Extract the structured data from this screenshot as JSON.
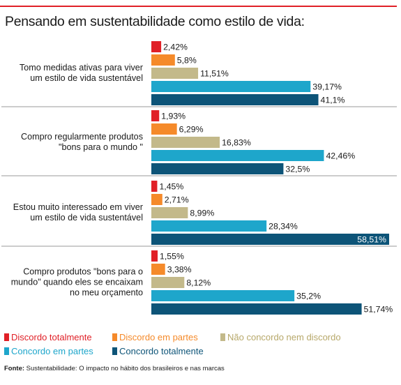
{
  "title": "Pensando em sustentabilidade como estilo de vida:",
  "chart_data": {
    "type": "bar",
    "orientation": "horizontal",
    "categories": [
      [
        "Tomo medidas ativas para viver",
        "um estilo de vida sustentável"
      ],
      [
        "Compro regularmente produtos",
        "\"bons para o mundo \""
      ],
      [
        "Estou muito interessado em viver",
        "um estilo de vida sustentável"
      ],
      [
        "Compro produtos \"bons para o",
        "mundo\" quando eles se encaixam",
        "no meu orçamento"
      ]
    ],
    "series": [
      {
        "name": "Discordo totalmente",
        "color": "#e02027",
        "values": [
          2.42,
          1.93,
          1.45,
          1.55
        ],
        "labels": [
          "2,42%",
          "1,93%",
          "1,45%",
          "1,55%"
        ]
      },
      {
        "name": "Discordo em partes",
        "color": "#f58a2a",
        "values": [
          5.8,
          6.29,
          2.71,
          3.38
        ],
        "labels": [
          "5,8%",
          "6,29%",
          "2,71%",
          "3,38%"
        ]
      },
      {
        "name": "Não concordo nem discordo",
        "color": "#c3b98a",
        "values": [
          11.51,
          16.83,
          8.99,
          8.12
        ],
        "labels": [
          "11,51%",
          "16,83%",
          "8,99%",
          "8,12%"
        ]
      },
      {
        "name": "Concordo em partes",
        "color": "#1ea6cb",
        "values": [
          39.17,
          42.46,
          28.34,
          35.2
        ],
        "labels": [
          "39,17%",
          "42,46%",
          "28,34%",
          "35,2%"
        ]
      },
      {
        "name": "Concordo totalmente",
        "color": "#0d5478",
        "values": [
          41.1,
          32.5,
          58.51,
          51.74
        ],
        "labels": [
          "41,1%",
          "32,5%",
          "58,51%",
          "51,74%"
        ]
      }
    ],
    "xlim": [
      0,
      60
    ],
    "grid": false,
    "legend": "bottom"
  },
  "legend_colors": {
    "Discordo totalmente": "#e02027",
    "Discordo em partes": "#f58a2a",
    "Não concordo nem discordo": "#b7a86a",
    "Concordo em partes": "#1ea6cb",
    "Concordo totalmente": "#0d5478"
  },
  "source": {
    "label": "Fonte:",
    "text": "Sustentabilidade: O impacto no hábito dos brasileiros e nas marcas"
  }
}
